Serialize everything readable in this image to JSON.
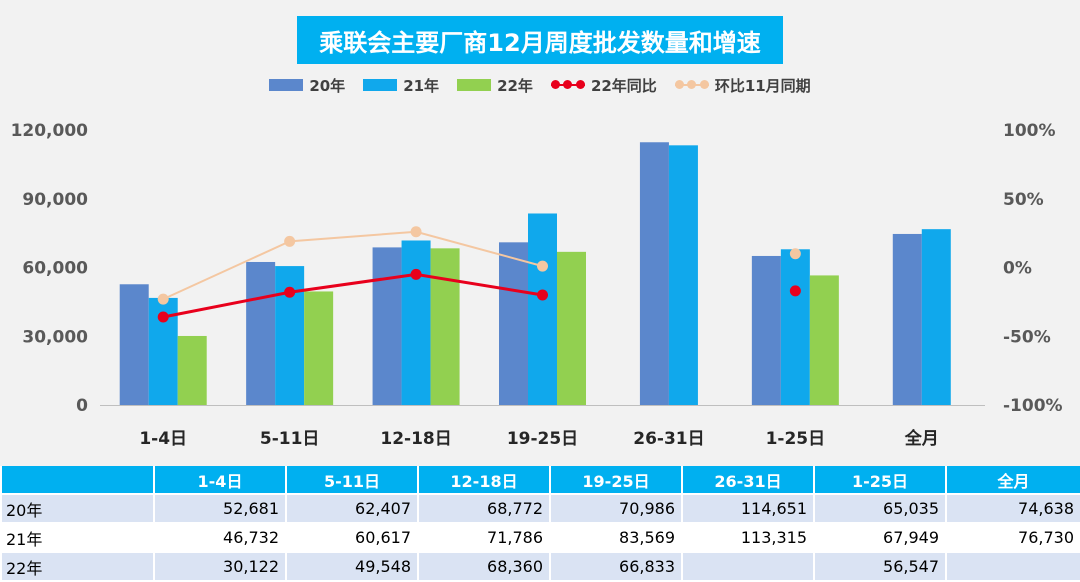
{
  "title": "乘联会主要厂商12月周度批发数量和增速",
  "colors": {
    "s20": "#5b87cc",
    "s21": "#10a8ec",
    "s22": "#92d050",
    "yoy": "#e8001c",
    "mom": "#f4c7a1",
    "table_header": "#00b0f0"
  },
  "legend": [
    {
      "label": "20年",
      "kind": "bar",
      "color": "#5b87cc"
    },
    {
      "label": "21年",
      "kind": "bar",
      "color": "#10a8ec"
    },
    {
      "label": "22年",
      "kind": "bar",
      "color": "#92d050"
    },
    {
      "label": "22年同比",
      "kind": "line",
      "color": "#e8001c"
    },
    {
      "label": "环比11月同期",
      "kind": "line",
      "color": "#f4c7a1"
    }
  ],
  "chart_data": {
    "type": "bar",
    "categories": [
      "1-4日",
      "5-11日",
      "12-18日",
      "19-25日",
      "26-31日",
      "1-25日",
      "全月"
    ],
    "series": [
      {
        "name": "20年",
        "values": [
          52681,
          62407,
          68772,
          70986,
          114651,
          65035,
          74638
        ]
      },
      {
        "name": "21年",
        "values": [
          46732,
          60617,
          71786,
          83569,
          113315,
          67949,
          76730
        ]
      },
      {
        "name": "22年",
        "values": [
          30122,
          49548,
          68360,
          66833,
          null,
          56547,
          null
        ]
      }
    ],
    "line_series": [
      {
        "name": "22年同比",
        "axis": "right",
        "values": [
          -36,
          -18,
          -5,
          -20,
          null,
          -17,
          null
        ],
        "connect_until": 3
      },
      {
        "name": "环比11月同期",
        "axis": "right",
        "values": [
          -23,
          19,
          26,
          1,
          null,
          10,
          null
        ],
        "connect_until": 3
      }
    ],
    "ylim_left": [
      0,
      120000
    ],
    "yticks_left": [
      "0",
      "30,000",
      "60,000",
      "90,000",
      "120,000"
    ],
    "ylim_right": [
      -100,
      100
    ],
    "yticks_right": [
      "-100%",
      "-50%",
      "0%",
      "50%",
      "100%"
    ],
    "grid": false,
    "legend_position": "top-center"
  },
  "table": {
    "headers": [
      "",
      "1-4日",
      "5-11日",
      "12-18日",
      "19-25日",
      "26-31日",
      "1-25日",
      "全月"
    ],
    "rows": [
      {
        "label": "20年",
        "cells": [
          "52,681",
          "62,407",
          "68,772",
          "70,986",
          "114,651",
          "65,035",
          "74,638"
        ]
      },
      {
        "label": "21年",
        "cells": [
          "46,732",
          "60,617",
          "71,786",
          "83,569",
          "113,315",
          "67,949",
          "76,730"
        ]
      },
      {
        "label": "22年",
        "cells": [
          "30,122",
          "49,548",
          "68,360",
          "66,833",
          "",
          "56,547",
          ""
        ]
      }
    ]
  }
}
